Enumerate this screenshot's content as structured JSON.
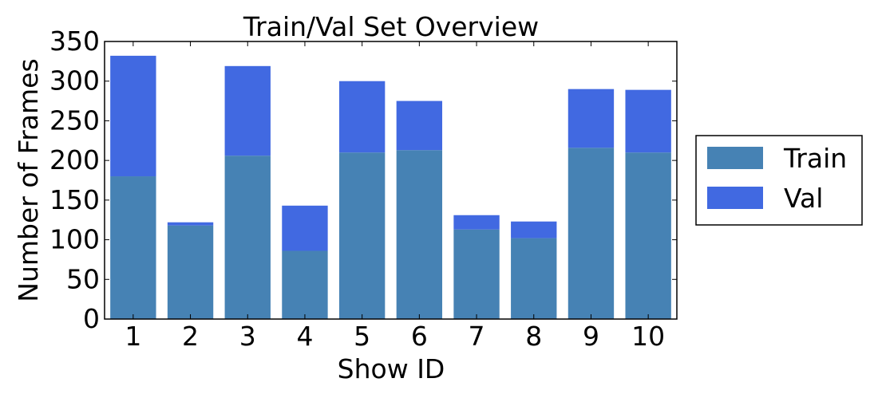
{
  "chart_data": {
    "type": "bar",
    "stacked": true,
    "title": "Train/Val Set Overview",
    "xlabel": "Show ID",
    "ylabel": "Number of Frames",
    "categories": [
      "1",
      "2",
      "3",
      "4",
      "5",
      "6",
      "7",
      "8",
      "9",
      "10"
    ],
    "series": [
      {
        "name": "Train",
        "color": "#4682B4",
        "values": [
          180,
          118,
          206,
          86,
          210,
          213,
          113,
          102,
          216,
          210
        ]
      },
      {
        "name": "Val",
        "color": "#4169E1",
        "values": [
          152,
          4,
          113,
          57,
          90,
          62,
          18,
          21,
          74,
          79
        ]
      }
    ],
    "ylim": [
      0,
      350
    ],
    "yticks": [
      0,
      50,
      100,
      150,
      200,
      250,
      300,
      350
    ],
    "grid": false,
    "legend_position": "outside-right"
  }
}
